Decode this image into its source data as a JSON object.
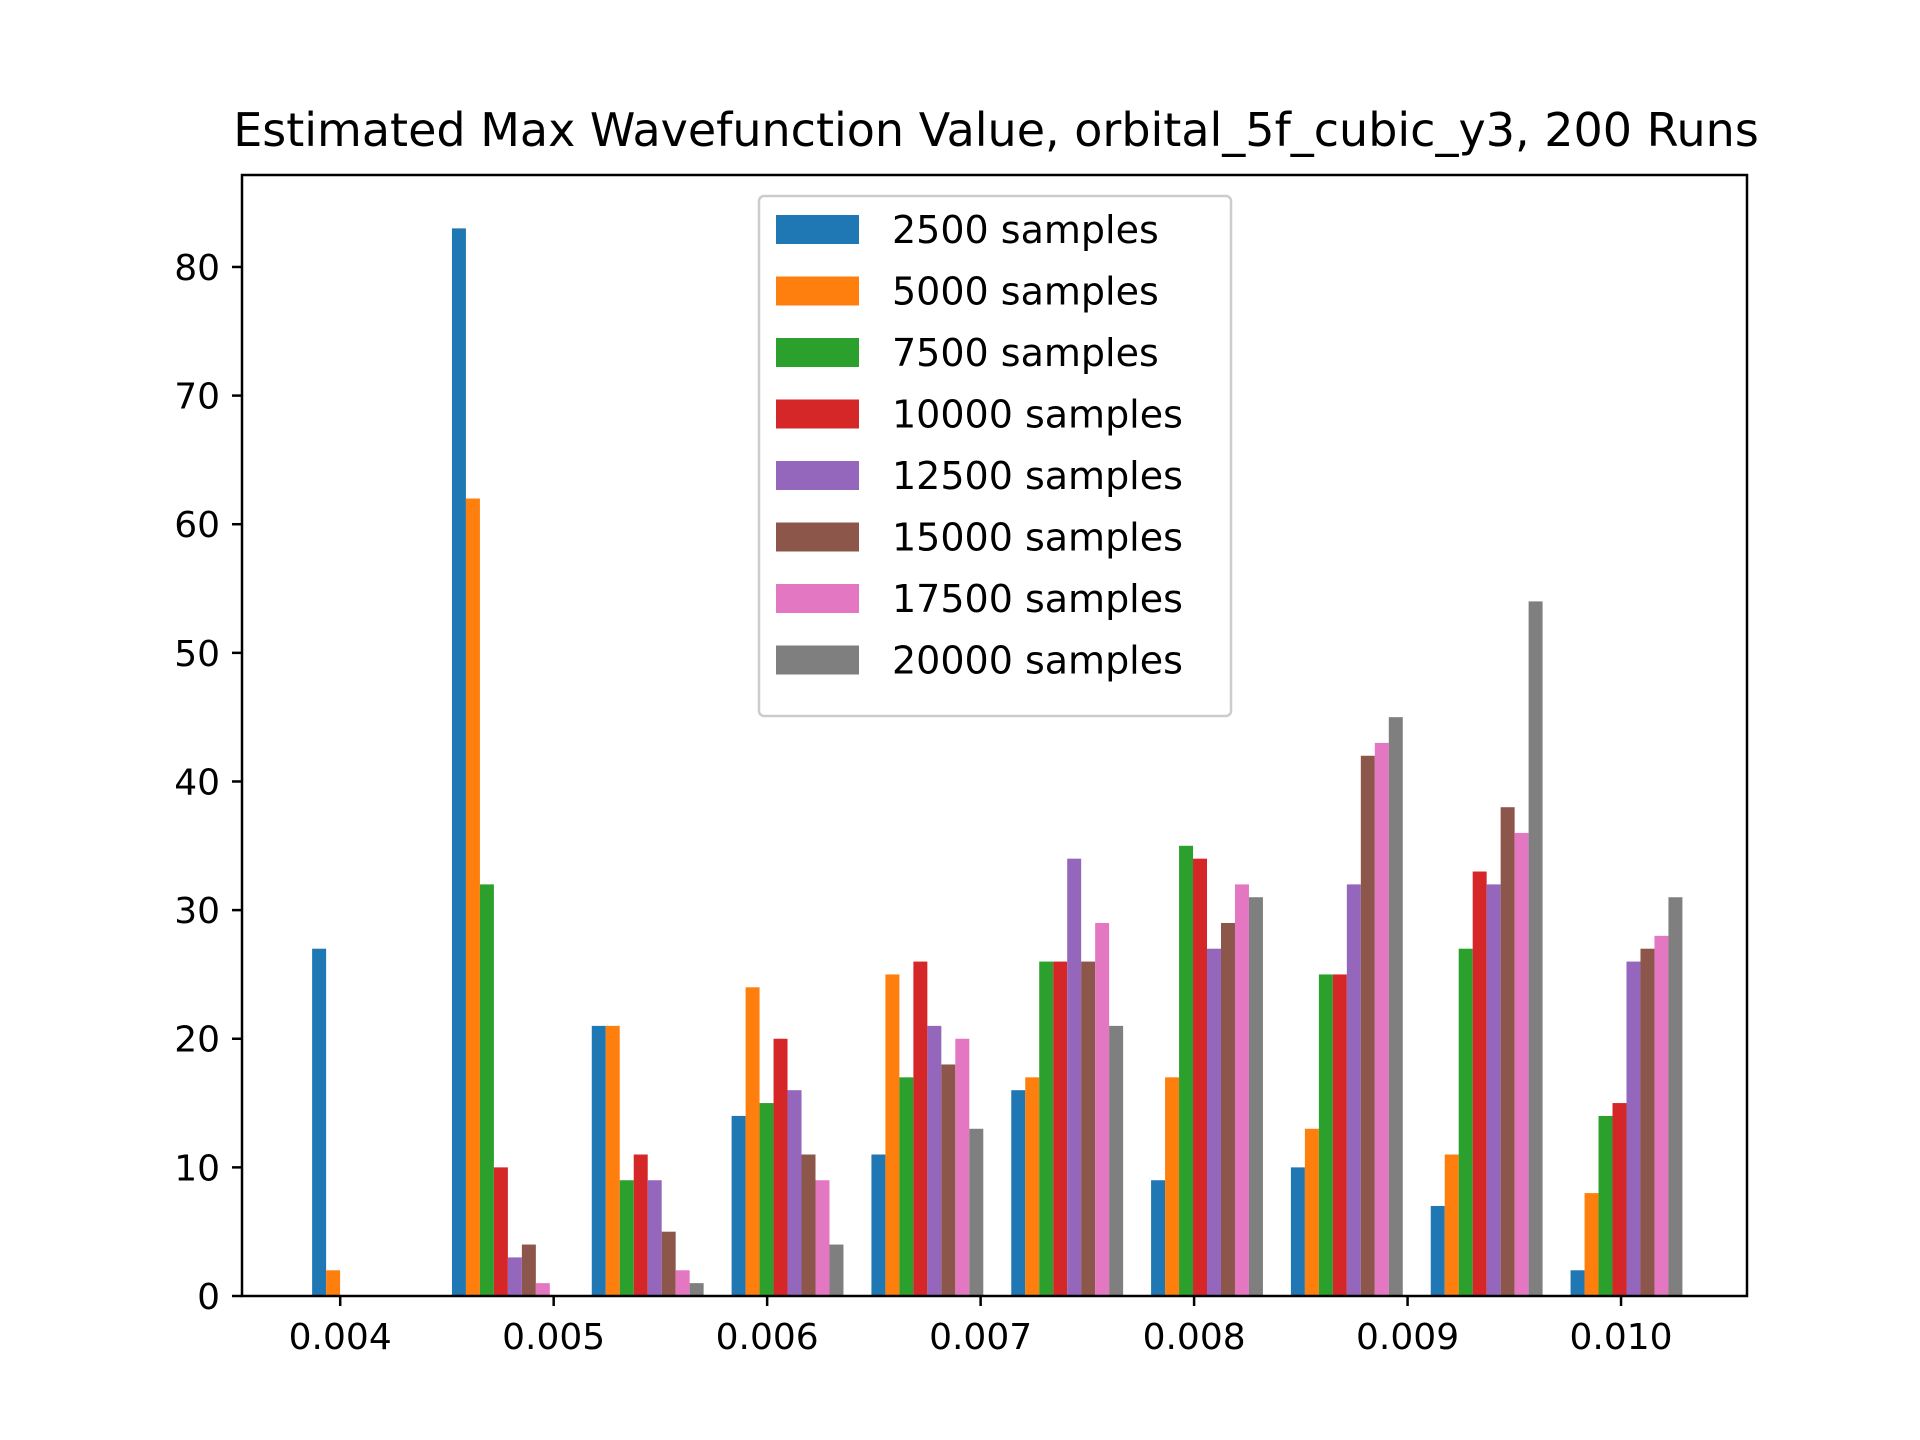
{
  "chart_data": {
    "type": "bar",
    "title": "Estimated Max Wavefunction Value, orbital_5f_cubic_y3, 200 Runs",
    "xlabel": "",
    "ylabel": "",
    "x_ticks": [
      "0.004",
      "0.005",
      "0.006",
      "0.007",
      "0.008",
      "0.009",
      "0.010"
    ],
    "x_tick_values": [
      0.004,
      0.005,
      0.006,
      0.007,
      0.008,
      0.009,
      0.01
    ],
    "y_ticks": [
      "0",
      "10",
      "20",
      "30",
      "40",
      "50",
      "60",
      "70",
      "80"
    ],
    "xlim": [
      0.00354,
      0.01059
    ],
    "ylim": [
      0,
      87.15
    ],
    "bin_edges": [
      0.003803,
      0.004458,
      0.005113,
      0.005768,
      0.006423,
      0.007078,
      0.007733,
      0.008388,
      0.009043,
      0.009698,
      0.010353
    ],
    "legend_position": "upper center",
    "grid": false,
    "series": [
      {
        "name": "2500 samples",
        "color": "#1f77b4",
        "values": [
          27,
          83,
          21,
          14,
          11,
          16,
          9,
          10,
          7,
          2
        ]
      },
      {
        "name": "5000 samples",
        "color": "#ff7f0e",
        "values": [
          2,
          62,
          21,
          24,
          25,
          17,
          17,
          13,
          11,
          8
        ]
      },
      {
        "name": "7500 samples",
        "color": "#2ca02c",
        "values": [
          0,
          32,
          9,
          15,
          17,
          26,
          35,
          25,
          27,
          14
        ]
      },
      {
        "name": "10000 samples",
        "color": "#d62728",
        "values": [
          0,
          10,
          11,
          20,
          26,
          26,
          34,
          25,
          33,
          15
        ]
      },
      {
        "name": "12500 samples",
        "color": "#9467bd",
        "values": [
          0,
          3,
          9,
          16,
          21,
          34,
          27,
          32,
          32,
          26
        ]
      },
      {
        "name": "15000 samples",
        "color": "#8c564b",
        "values": [
          0,
          4,
          5,
          11,
          18,
          26,
          29,
          42,
          38,
          27
        ]
      },
      {
        "name": "17500 samples",
        "color": "#e377c2",
        "values": [
          0,
          1,
          2,
          9,
          20,
          29,
          32,
          43,
          36,
          28
        ]
      },
      {
        "name": "20000 samples",
        "color": "#7f7f7f",
        "values": [
          0,
          0,
          1,
          4,
          13,
          21,
          31,
          45,
          54,
          31
        ]
      }
    ]
  }
}
